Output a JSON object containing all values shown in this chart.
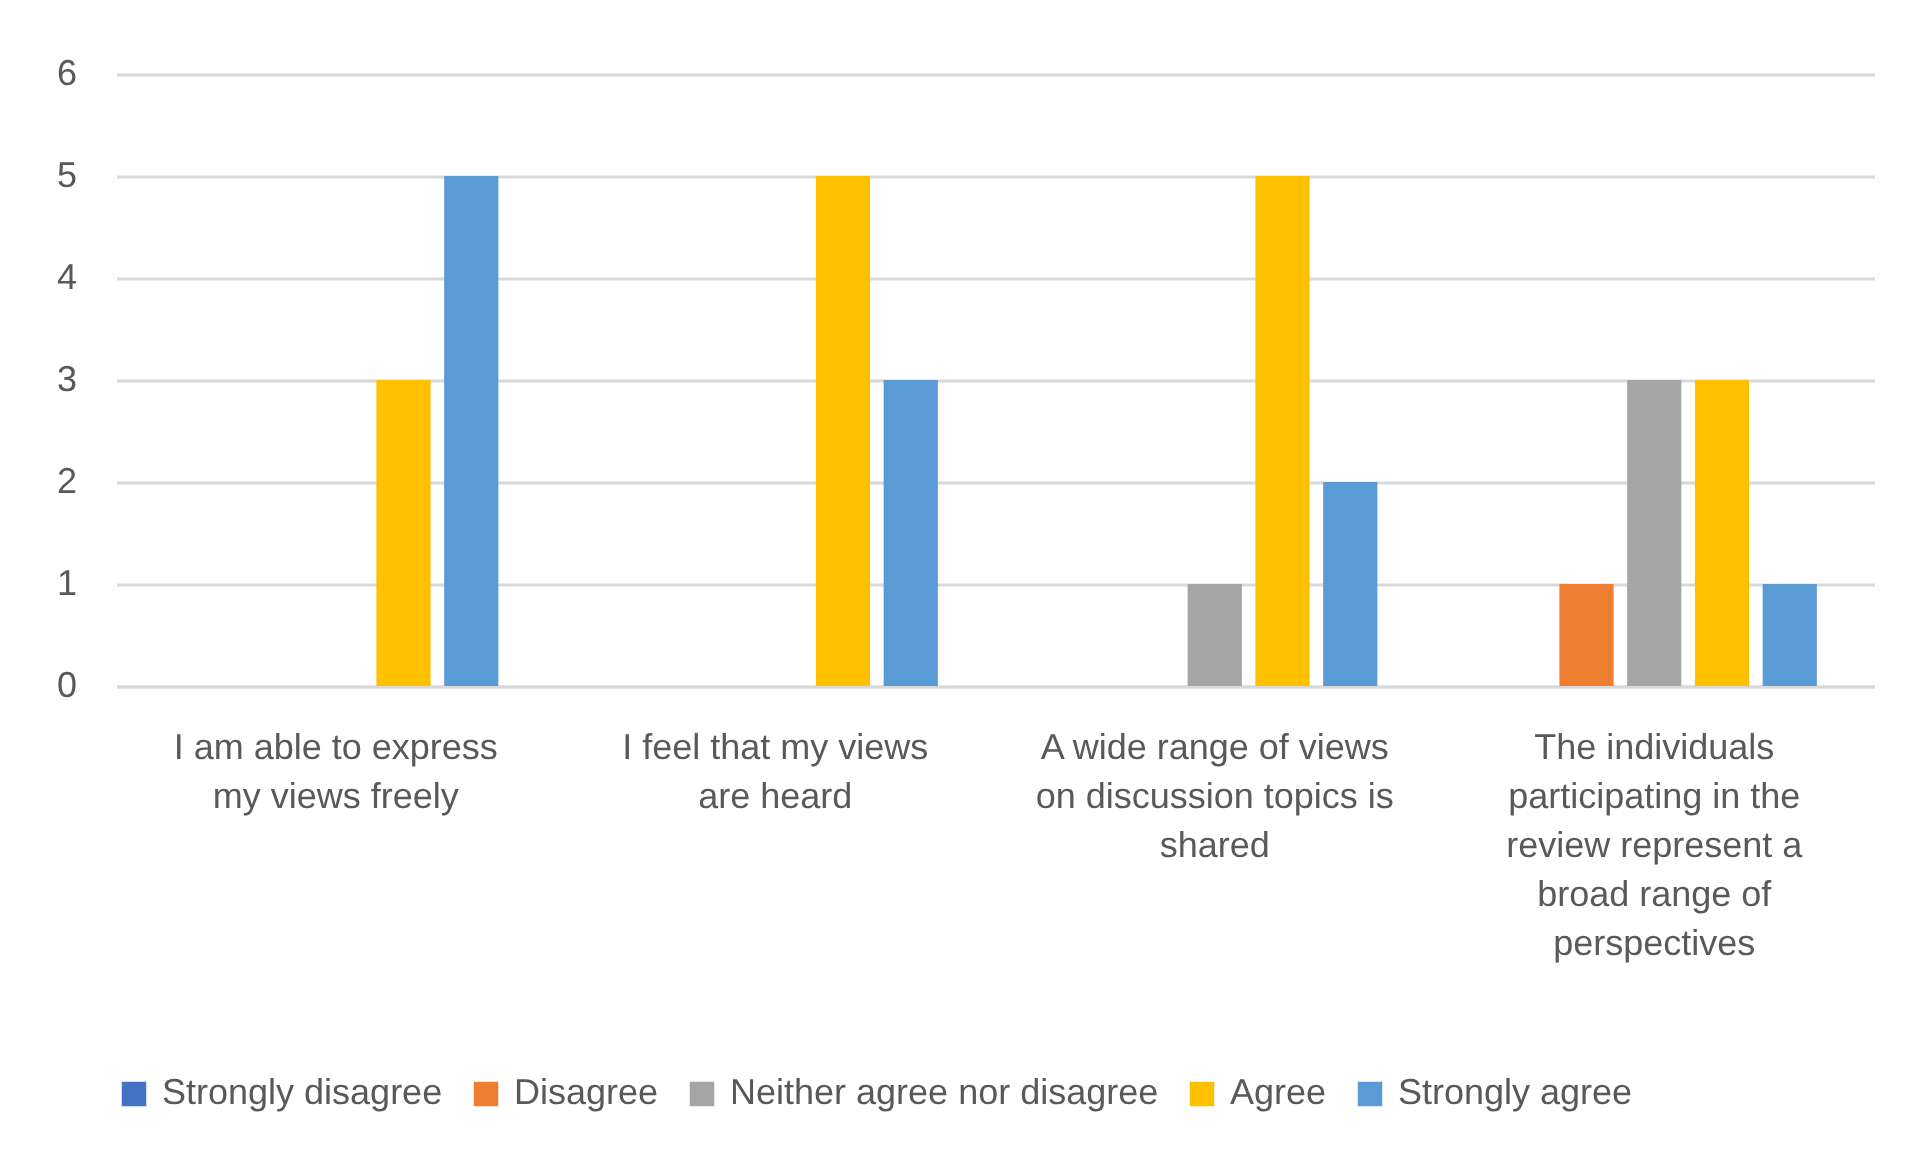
{
  "chart_data": {
    "type": "bar",
    "categories": [
      "I am able to express my views freely",
      "I feel that my views are heard",
      "A wide range of views on discussion topics is shared",
      "The individuals participating in the review represent a broad range of perspectives"
    ],
    "series": [
      {
        "name": "Strongly disagree",
        "color": "#4472c4",
        "values": [
          0,
          0,
          0,
          0
        ]
      },
      {
        "name": "Disagree",
        "color": "#ed7d31",
        "values": [
          0,
          0,
          0,
          1
        ]
      },
      {
        "name": "Neither agree nor disagree",
        "color": "#a5a5a5",
        "values": [
          0,
          0,
          1,
          3
        ]
      },
      {
        "name": "Agree",
        "color": "#ffc000",
        "values": [
          3,
          5,
          5,
          3
        ]
      },
      {
        "name": "Strongly agree",
        "color": "#5b9bd5",
        "values": [
          5,
          3,
          2,
          1
        ]
      }
    ],
    "ylim": [
      0,
      6
    ],
    "yticks": [
      0,
      1,
      2,
      3,
      4,
      5,
      6
    ],
    "grid": "y",
    "legend": "bottom"
  }
}
